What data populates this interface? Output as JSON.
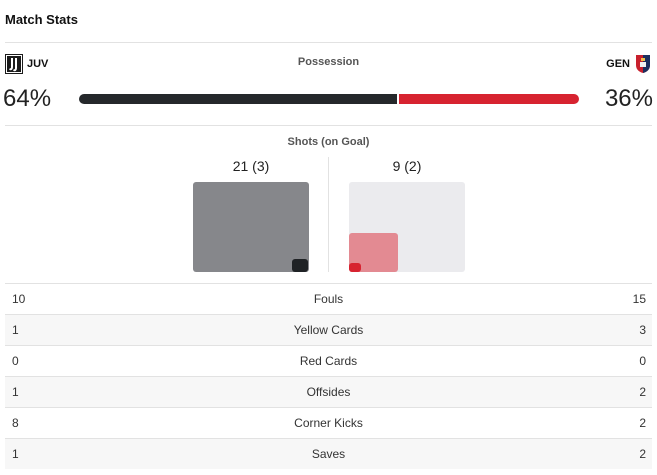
{
  "header": {
    "title": "Match Stats"
  },
  "teams": {
    "home": {
      "abbr": "JUV",
      "logo_icon": "juventus-logo-icon",
      "color": "#25282b"
    },
    "away": {
      "abbr": "GEN",
      "logo_icon": "genoa-logo-icon",
      "color": "#d72330"
    }
  },
  "possession": {
    "label": "Possession",
    "home_text": "64%",
    "away_text": "36%",
    "home_share": 0.64,
    "away_share": 0.36
  },
  "shots": {
    "label": "Shots (on Goal)",
    "home_text": "21 (3)",
    "away_text": "9 (2)",
    "home_total": 21,
    "home_on_goal": 3,
    "away_total": 9,
    "away_on_goal": 2
  },
  "stats": [
    {
      "home": "10",
      "label": "Fouls",
      "away": "15"
    },
    {
      "home": "1",
      "label": "Yellow Cards",
      "away": "3"
    },
    {
      "home": "0",
      "label": "Red Cards",
      "away": "0"
    },
    {
      "home": "1",
      "label": "Offsides",
      "away": "2"
    },
    {
      "home": "8",
      "label": "Corner Kicks",
      "away": "2"
    },
    {
      "home": "1",
      "label": "Saves",
      "away": "2"
    }
  ]
}
